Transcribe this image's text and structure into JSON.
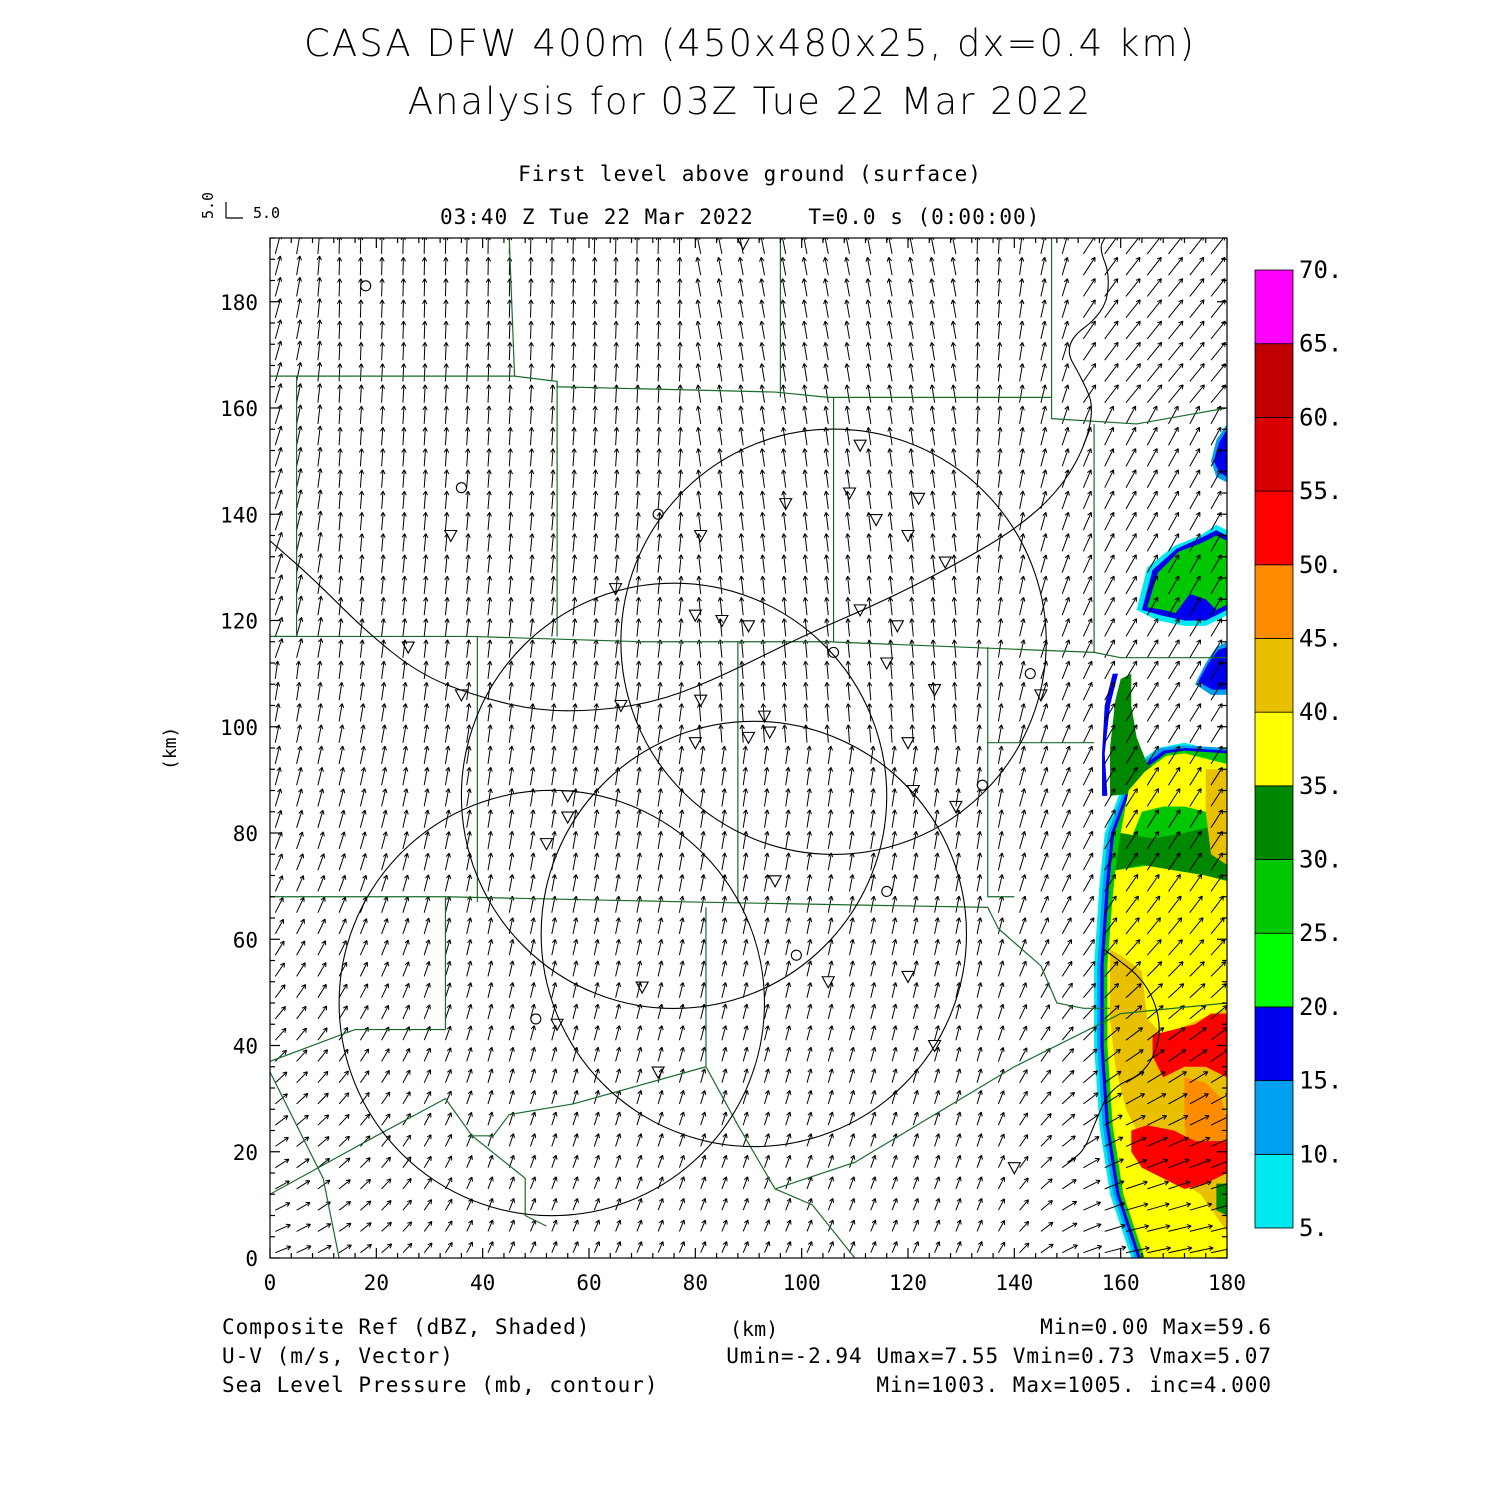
{
  "header": {
    "title_line1": "CASA DFW 400m (450x480x25, dx=0.4 km)",
    "title_line2": "Analysis for 03Z Tue 22 Mar 2022",
    "subtitle": "First level above ground (surface)",
    "time_line": "03:40 Z Tue 22 Mar 2022    T=0.0 s (0:00:00)",
    "vector_scale_x": "5.0",
    "vector_scale_y": "5.0"
  },
  "axes": {
    "xlabel": "(km)",
    "ylabel": "(km)",
    "xlim": [
      0,
      180
    ],
    "ylim": [
      0,
      192
    ],
    "x_ticks": [
      "0",
      "20",
      "40",
      "60",
      "80",
      "100",
      "120",
      "140",
      "160",
      "180"
    ],
    "y_ticks": [
      "0",
      "20",
      "40",
      "60",
      "80",
      "100",
      "120",
      "140",
      "160",
      "180"
    ]
  },
  "colorbar": {
    "labels": [
      "5.",
      "10.",
      "15.",
      "20.",
      "25.",
      "30.",
      "35.",
      "40.",
      "45.",
      "50.",
      "55.",
      "60.",
      "65.",
      "70."
    ],
    "colors": [
      "#00e8f0",
      "#00a0f0",
      "#0000f0",
      "#00ff00",
      "#00c800",
      "#008800",
      "#ffff00",
      "#e8c000",
      "#ff8c00",
      "#ff0000",
      "#d80000",
      "#c00000",
      "#ff00ff"
    ]
  },
  "footer": {
    "line1_left": "Composite Ref (dBZ, Shaded)",
    "line1_right": "Min=0.00 Max=59.6",
    "line2_left": "U-V (m/s, Vector)",
    "line2_right": "Umin=-2.94 Umax=7.55 Vmin=0.73 Vmax=5.07",
    "line3_left": "Sea Level Pressure (mb, contour)",
    "line3_right": "Min=1003. Max=1005. inc=4.000"
  },
  "map_data": {
    "radar_rings": [
      {
        "cx": 106,
        "cy": 116,
        "r": 40
      },
      {
        "cx": 76,
        "cy": 87,
        "r": 40
      },
      {
        "cx": 91,
        "cy": 61,
        "r": 40
      },
      {
        "cx": 53,
        "cy": 48,
        "r": 40
      }
    ],
    "radar_sites": [
      [
        18,
        183
      ],
      [
        36,
        145
      ],
      [
        73,
        140
      ],
      [
        106,
        114
      ],
      [
        134,
        89
      ],
      [
        143,
        110
      ],
      [
        116,
        69
      ],
      [
        99,
        57
      ],
      [
        50,
        45
      ]
    ],
    "stations": [
      [
        89,
        191
      ],
      [
        111,
        153
      ],
      [
        97,
        142
      ],
      [
        109,
        144
      ],
      [
        122,
        143
      ],
      [
        114,
        139
      ],
      [
        81,
        136
      ],
      [
        120,
        136
      ],
      [
        127,
        131
      ],
      [
        34,
        136
      ],
      [
        65,
        126
      ],
      [
        80,
        121
      ],
      [
        85,
        120
      ],
      [
        90,
        119
      ],
      [
        111,
        122
      ],
      [
        118,
        119
      ],
      [
        26,
        115
      ],
      [
        116,
        112
      ],
      [
        125,
        107
      ],
      [
        36,
        106
      ],
      [
        66,
        104
      ],
      [
        81,
        105
      ],
      [
        145,
        106
      ],
      [
        93,
        102
      ],
      [
        94,
        99
      ],
      [
        90,
        98
      ],
      [
        80,
        97
      ],
      [
        120,
        97
      ],
      [
        56,
        87
      ],
      [
        56,
        83
      ],
      [
        52,
        78
      ],
      [
        121,
        88
      ],
      [
        129,
        85
      ],
      [
        95,
        71
      ],
      [
        70,
        51
      ],
      [
        105,
        52
      ],
      [
        120,
        53
      ],
      [
        54,
        44
      ],
      [
        125,
        40
      ],
      [
        73,
        35
      ],
      [
        140,
        17
      ]
    ],
    "pressure_contours": [
      {
        "label": "sea-level-pressure-contour-1",
        "points": [
          [
            0,
            135
          ],
          [
            8,
            128
          ],
          [
            18,
            118
          ],
          [
            28,
            110
          ],
          [
            38,
            106
          ],
          [
            50,
            103
          ],
          [
            62,
            103
          ],
          [
            74,
            105
          ],
          [
            86,
            110
          ],
          [
            100,
            117
          ],
          [
            114,
            123
          ],
          [
            128,
            130
          ],
          [
            140,
            137
          ],
          [
            148,
            144
          ],
          [
            153,
            152
          ],
          [
            155,
            160
          ],
          [
            153,
            165
          ],
          [
            149,
            172
          ],
          [
            157,
            178
          ],
          [
            158,
            185
          ],
          [
            156,
            190
          ],
          [
            157,
            192
          ]
        ]
      },
      {
        "label": "sea-level-pressure-contour-2",
        "points": [
          [
            157,
            58
          ],
          [
            165,
            52
          ],
          [
            168,
            43
          ],
          [
            165,
            35
          ],
          [
            158,
            32
          ],
          [
            155,
            25
          ],
          [
            153,
            20
          ],
          [
            150,
            18
          ]
        ]
      }
    ],
    "boundaries": [
      [
        [
          0,
          166
        ],
        [
          46,
          166
        ],
        [
          54,
          165
        ],
        [
          54,
          164
        ],
        [
          95,
          163
        ],
        [
          105,
          162
        ],
        [
          147,
          162
        ],
        [
          147,
          158
        ],
        [
          163,
          157
        ],
        [
          180,
          160
        ]
      ],
      [
        [
          46,
          166
        ],
        [
          45,
          192
        ]
      ],
      [
        [
          96,
          162
        ],
        [
          96,
          192
        ]
      ],
      [
        [
          147,
          162
        ],
        [
          147,
          192
        ]
      ],
      [
        [
          5,
          166
        ],
        [
          5,
          117
        ],
        [
          0,
          117
        ]
      ],
      [
        [
          54,
          165
        ],
        [
          54,
          117
        ]
      ],
      [
        [
          106,
          162
        ],
        [
          106,
          116
        ]
      ],
      [
        [
          155,
          157
        ],
        [
          155,
          114
        ],
        [
          160,
          113
        ],
        [
          180,
          113
        ]
      ],
      [
        [
          0,
          117
        ],
        [
          38,
          117
        ],
        [
          70,
          116
        ],
        [
          105,
          116
        ],
        [
          155,
          114
        ]
      ],
      [
        [
          39,
          117
        ],
        [
          39,
          67
        ]
      ],
      [
        [
          88,
          116
        ],
        [
          88,
          67
        ]
      ],
      [
        [
          135,
          115
        ],
        [
          135,
          68
        ],
        [
          140,
          68
        ]
      ],
      [
        [
          135,
          97
        ],
        [
          155,
          97
        ]
      ],
      [
        [
          0,
          68
        ],
        [
          33,
          68
        ],
        [
          80,
          67
        ],
        [
          135,
          66
        ],
        [
          137,
          62
        ],
        [
          145,
          55
        ],
        [
          148,
          48
        ],
        [
          153,
          47
        ],
        [
          158,
          47
        ]
      ],
      [
        [
          33,
          68
        ],
        [
          33,
          43
        ],
        [
          16,
          43
        ],
        [
          0,
          37
        ]
      ],
      [
        [
          82,
          66
        ],
        [
          82,
          36
        ]
      ],
      [
        [
          0,
          12
        ],
        [
          20,
          23
        ],
        [
          33,
          30
        ],
        [
          38,
          23
        ],
        [
          42,
          23
        ],
        [
          45,
          27
        ],
        [
          57,
          29
        ],
        [
          82,
          36
        ],
        [
          88,
          25
        ],
        [
          95,
          13
        ],
        [
          110,
          18
        ],
        [
          140,
          36
        ],
        [
          160,
          46
        ],
        [
          180,
          48
        ]
      ],
      [
        [
          38,
          23
        ],
        [
          48,
          15
        ],
        [
          48,
          8
        ],
        [
          52,
          6
        ]
      ],
      [
        [
          95,
          13
        ],
        [
          102,
          10
        ],
        [
          110,
          0
        ]
      ],
      [
        [
          0,
          35
        ],
        [
          10,
          15
        ],
        [
          13,
          0
        ]
      ]
    ]
  }
}
